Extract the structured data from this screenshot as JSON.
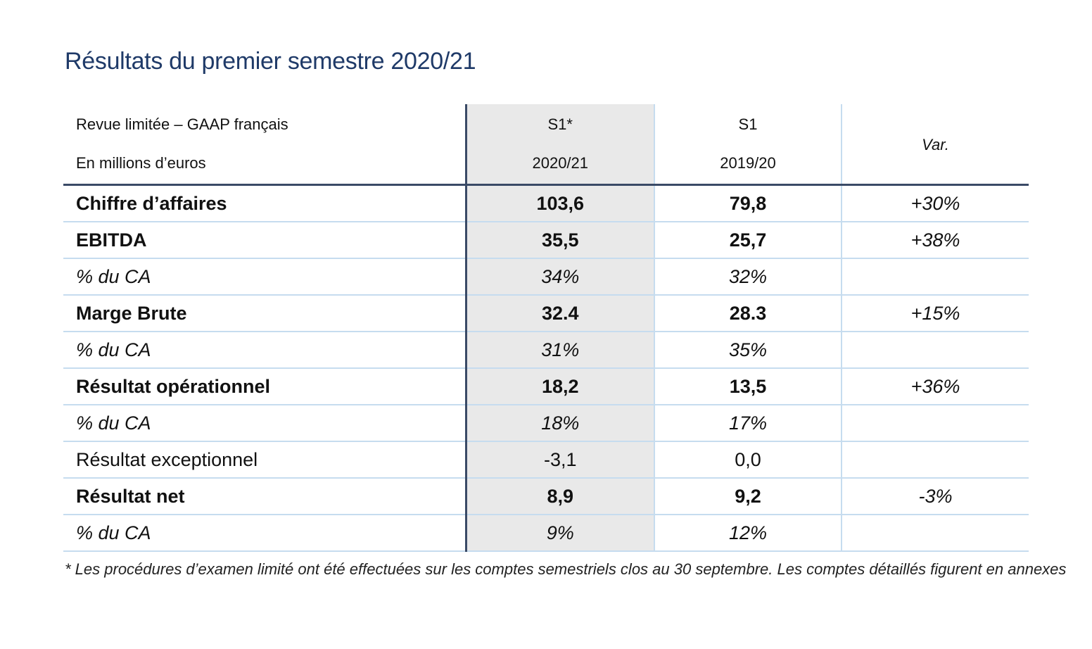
{
  "title": "Résultats du premier semestre 2020/21",
  "header": {
    "label_line1": "Revue limitée – GAAP français",
    "label_line2": "En millions d’euros",
    "col1_line1": "S1*",
    "col1_line2": "2020/21",
    "col2_line1": "S1",
    "col2_line2": "2019/20",
    "col3": "Var."
  },
  "rows": [
    {
      "label": "Chiffre d’affaires",
      "s1_2021": "103,6",
      "s1_2020": "79,8",
      "var": "+30%"
    },
    {
      "label": "EBITDA",
      "s1_2021": "35,5",
      "s1_2020": "25,7",
      "var": "+38%"
    },
    {
      "label": "% du CA",
      "s1_2021": "34%",
      "s1_2020": "32%",
      "var": ""
    },
    {
      "label": "Marge Brute",
      "s1_2021": "32.4",
      "s1_2020": "28.3",
      "var": "+15%"
    },
    {
      "label": "% du CA",
      "s1_2021": "31%",
      "s1_2020": "35%",
      "var": ""
    },
    {
      "label": "Résultat opérationnel",
      "s1_2021": "18,2",
      "s1_2020": "13,5",
      "var": "+36%"
    },
    {
      "label": "% du CA",
      "s1_2021": "18%",
      "s1_2020": "17%",
      "var": ""
    },
    {
      "label": "Résultat exceptionnel",
      "s1_2021": "-3,1",
      "s1_2020": "0,0",
      "var": ""
    },
    {
      "label": "Résultat net",
      "s1_2021": "8,9",
      "s1_2020": "9,2",
      "var": "-3%"
    },
    {
      "label": "% du CA",
      "s1_2021": "9%",
      "s1_2020": "12%",
      "var": ""
    }
  ],
  "footnote": "* Les procédures d’examen limité ont été effectuées sur les comptes semestriels clos au 30 septembre. Les comptes détaillés figurent en annexes"
}
